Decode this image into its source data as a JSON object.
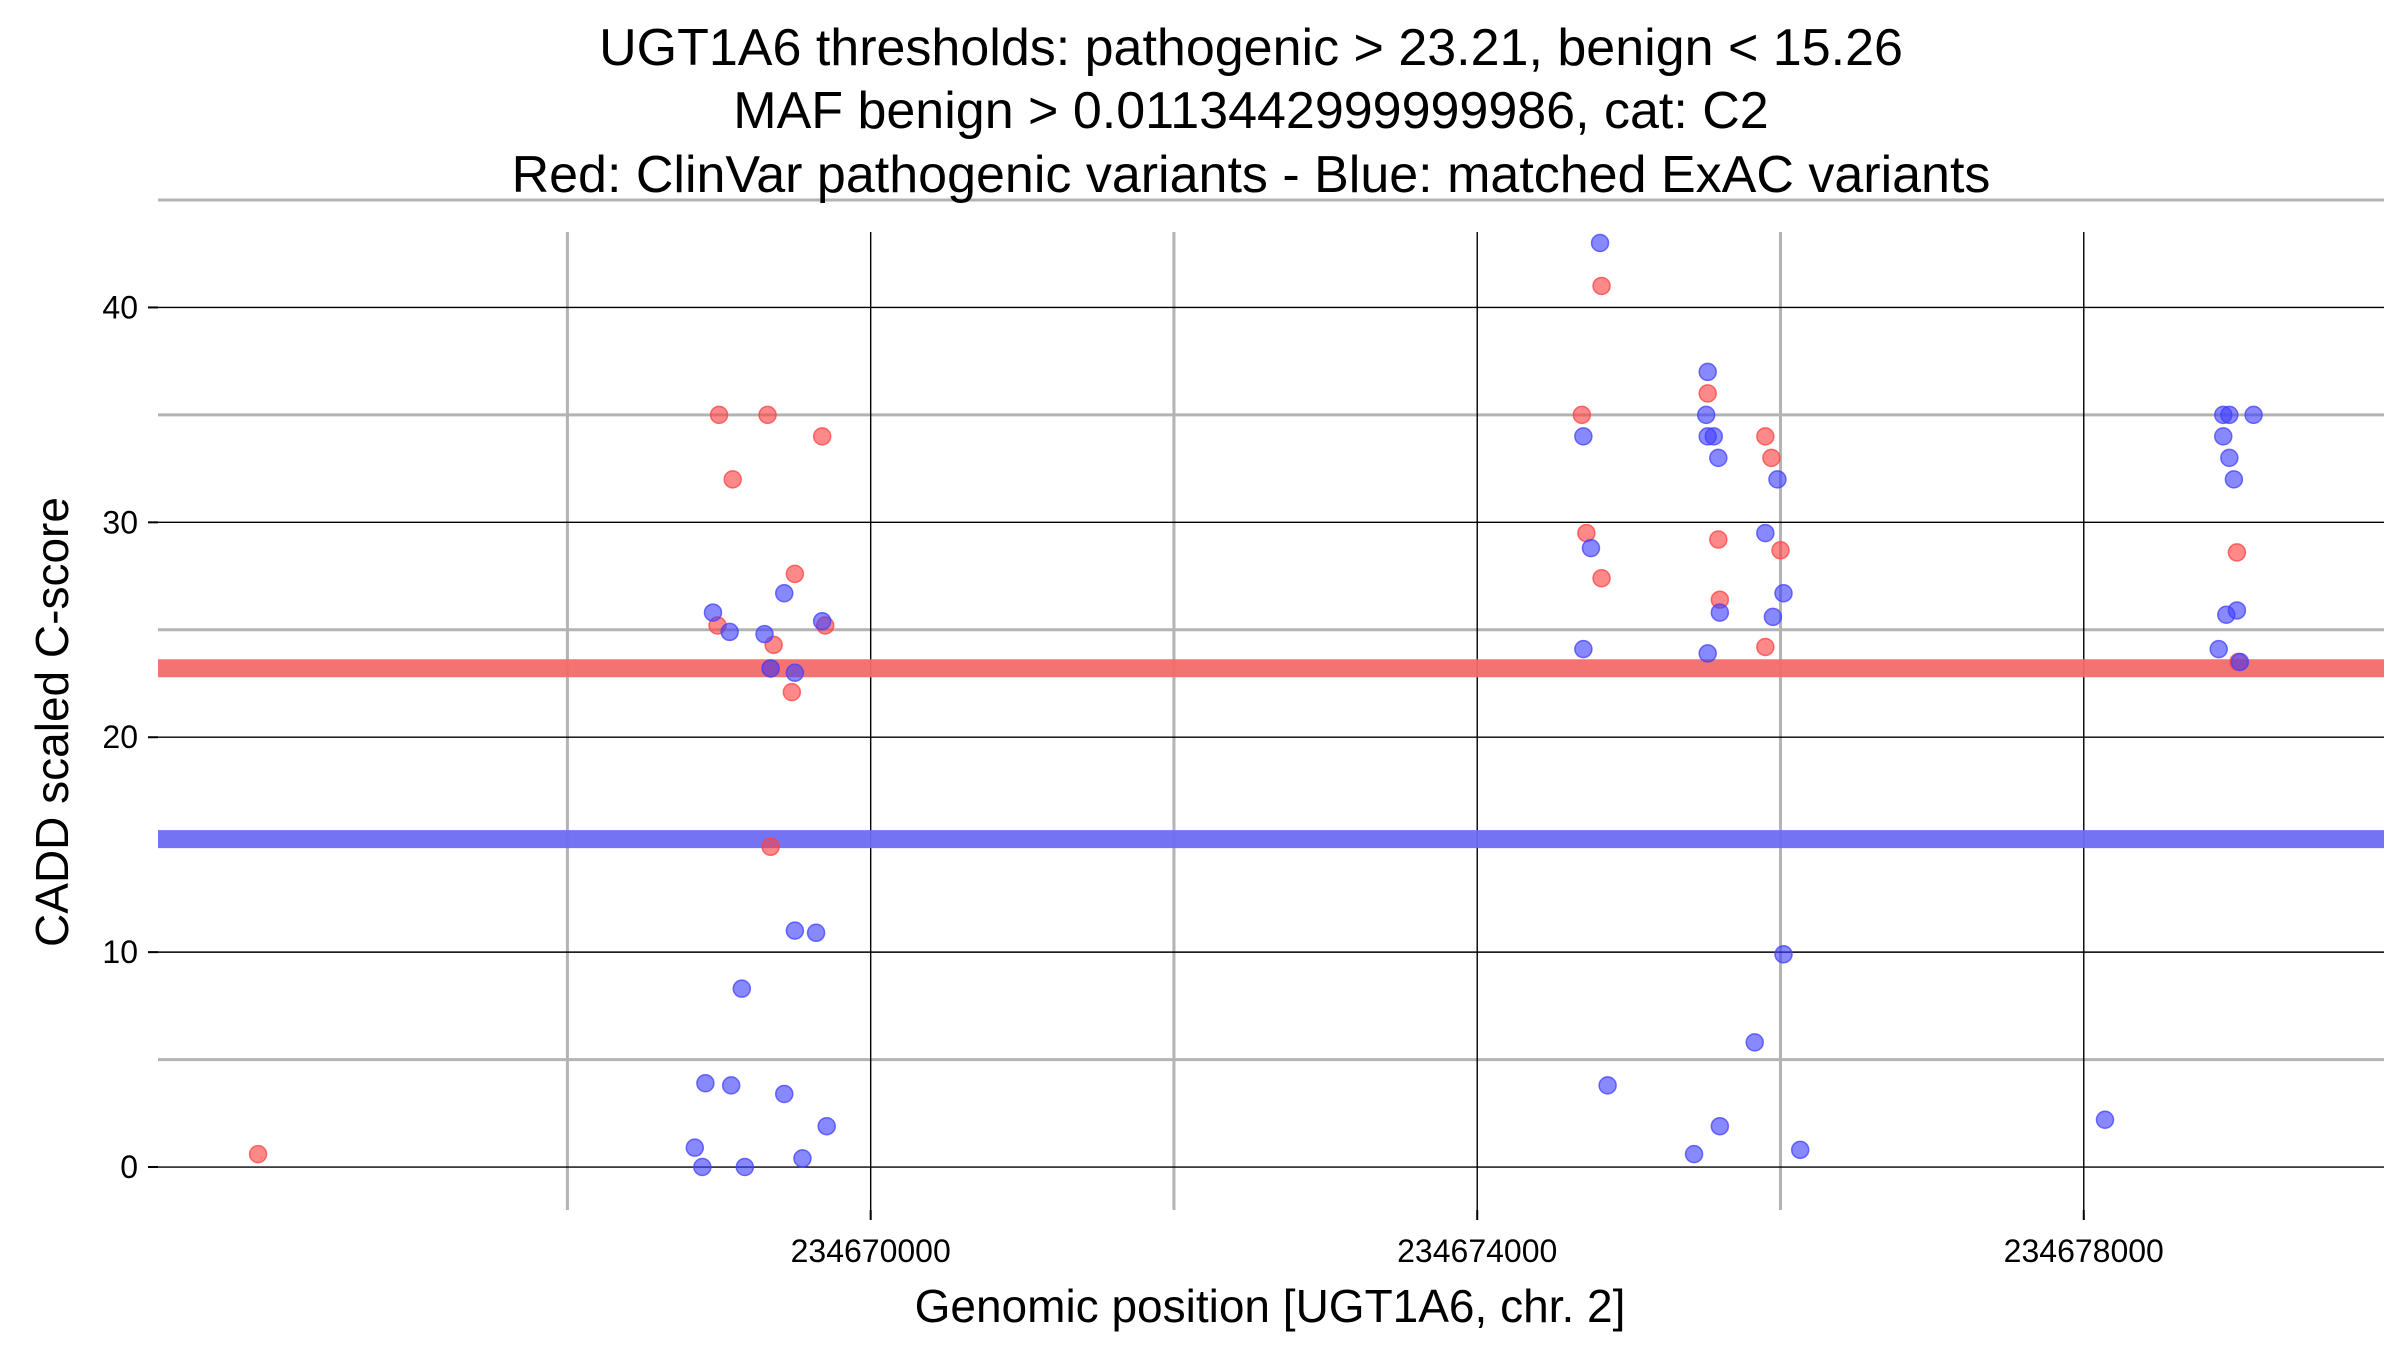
{
  "chart_data": {
    "type": "scatter",
    "title_lines": [
      "UGT1A6 thresholds: pathogenic > 23.21, benign < 15.26",
      "MAF benign > 0.0113442999999986, cat: C2",
      "Red: ClinVar pathogenic variants - Blue: matched ExAC variants"
    ],
    "xlabel": "Genomic position [UGT1A6, chr. 2]",
    "ylabel": "CADD scaled C-score",
    "xlim": [
      234665300,
      234679980
    ],
    "ylim": [
      -2,
      45
    ],
    "x_ticks": [
      234670000,
      234674000,
      234678000
    ],
    "x_tick_labels": [
      "234670000",
      "234674000",
      "234678000"
    ],
    "x_minor_grid": [
      234668000,
      234672000,
      234676000,
      234680000
    ],
    "y_ticks": [
      0,
      10,
      20,
      30,
      40
    ],
    "y_tick_labels": [
      "0",
      "10",
      "20",
      "30",
      "40"
    ],
    "y_minor_grid": [
      5,
      25,
      35,
      45
    ],
    "grid": true,
    "thresholds": [
      {
        "label": "pathogenic",
        "value": 23.21,
        "color": "#f26b6b"
      },
      {
        "label": "benign",
        "value": 15.26,
        "color": "#6b6bf2"
      }
    ],
    "series": [
      {
        "name": "ClinVar pathogenic",
        "color": "#ff4040",
        "points": [
          [
            234665960,
            0.6
          ],
          [
            234669000,
            35
          ],
          [
            234669090,
            32
          ],
          [
            234669320,
            35
          ],
          [
            234669680,
            34
          ],
          [
            234668990,
            25.2
          ],
          [
            234669360,
            24.3
          ],
          [
            234669500,
            27.6
          ],
          [
            234669700,
            25.2
          ],
          [
            234669340,
            23.2
          ],
          [
            234669480,
            22.1
          ],
          [
            234669340,
            14.9
          ],
          [
            234674690,
            35
          ],
          [
            234674720,
            29.5
          ],
          [
            234674820,
            41
          ],
          [
            234674820,
            27.4
          ],
          [
            234675520,
            36
          ],
          [
            234675590,
            29.2
          ],
          [
            234675600,
            26.4
          ],
          [
            234675900,
            34
          ],
          [
            234675940,
            33
          ],
          [
            234676000,
            28.7
          ],
          [
            234675900,
            24.2
          ],
          [
            234679010,
            28.6
          ],
          [
            234679020,
            23.5
          ]
        ]
      },
      {
        "name": "matched ExAC",
        "color": "#4040ff",
        "points": [
          [
            234668910,
            3.9
          ],
          [
            234669080,
            3.8
          ],
          [
            234668840,
            0.9
          ],
          [
            234668890,
            0
          ],
          [
            234669170,
            0
          ],
          [
            234669150,
            8.3
          ],
          [
            234669430,
            3.4
          ],
          [
            234669500,
            11
          ],
          [
            234669640,
            10.9
          ],
          [
            234669550,
            0.4
          ],
          [
            234669710,
            1.9
          ],
          [
            234668960,
            25.8
          ],
          [
            234669070,
            24.9
          ],
          [
            234669300,
            24.8
          ],
          [
            234669430,
            26.7
          ],
          [
            234669500,
            23
          ],
          [
            234669680,
            25.4
          ],
          [
            234669340,
            23.2
          ],
          [
            234674810,
            43
          ],
          [
            234674700,
            34
          ],
          [
            234674750,
            28.8
          ],
          [
            234674700,
            24.1
          ],
          [
            234674860,
            3.8
          ],
          [
            234675520,
            37
          ],
          [
            234675510,
            35
          ],
          [
            234675520,
            34
          ],
          [
            234675560,
            34
          ],
          [
            234675590,
            33
          ],
          [
            234675600,
            25.8
          ],
          [
            234675520,
            23.9
          ],
          [
            234675900,
            29.5
          ],
          [
            234675980,
            32
          ],
          [
            234676020,
            26.7
          ],
          [
            234675950,
            25.6
          ],
          [
            234676020,
            9.9
          ],
          [
            234675830,
            5.8
          ],
          [
            234675600,
            1.9
          ],
          [
            234675430,
            0.6
          ],
          [
            234676130,
            0.8
          ],
          [
            234678140,
            2.2
          ],
          [
            234678920,
            35
          ],
          [
            234678960,
            35
          ],
          [
            234679120,
            35
          ],
          [
            234678920,
            34
          ],
          [
            234678960,
            33
          ],
          [
            234678990,
            32
          ],
          [
            234678940,
            25.7
          ],
          [
            234679010,
            25.9
          ],
          [
            234678890,
            24.1
          ],
          [
            234679030,
            23.5
          ]
        ]
      }
    ]
  }
}
